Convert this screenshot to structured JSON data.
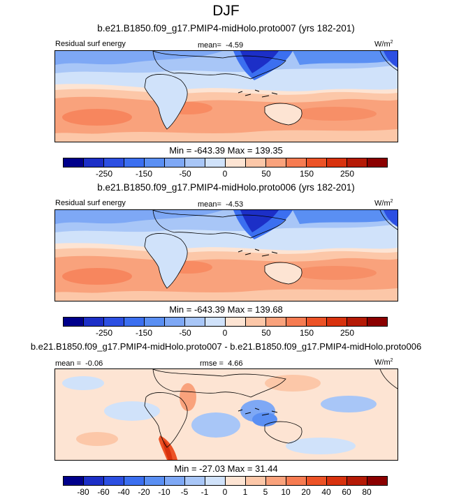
{
  "figure_title": "DJF",
  "colors": {
    "levels_abs": [
      "#00008b",
      "#1c2fc7",
      "#2c4fe2",
      "#3b6ff0",
      "#5a8ff3",
      "#7ea8f5",
      "#a8c6f7",
      "#d0e2fa",
      "#fde4d3",
      "#fcc7a8",
      "#f9a27c",
      "#f67b51",
      "#ec5226",
      "#d8320e",
      "#b51a06",
      "#8b0000"
    ]
  },
  "chart_data": [
    {
      "type": "heatmap",
      "title": "b.e21.B1850.f09_g17.PMIP4-midHolo.proto007 (yrs 182-201)",
      "variable_label": "Residual surf energy",
      "mean_label": "mean=",
      "mean_value": "-4.59",
      "units": "W/m",
      "units_exp": "2",
      "min_max": "Min = -643.39 Max = 139.35",
      "colorbar_ticks": [
        "-250",
        "-150",
        "-50",
        "0",
        "50",
        "150",
        "250"
      ]
    },
    {
      "type": "heatmap",
      "title": "b.e21.B1850.f09_g17.PMIP4-midHolo.proto006 (yrs 182-201)",
      "variable_label": "Residual surf energy",
      "mean_label": "mean=",
      "mean_value": "-4.53",
      "units": "W/m",
      "units_exp": "2",
      "min_max": "Min = -643.39 Max = 139.68",
      "colorbar_ticks": [
        "-250",
        "-150",
        "-50",
        "0",
        "50",
        "150",
        "250"
      ]
    },
    {
      "type": "heatmap",
      "title": "b.e21.B1850.f09_g17.PMIP4-midHolo.proto007 - b.e21.B1850.f09_g17.PMIP4-midHolo.proto006",
      "mean_label": "mean =",
      "mean_value": "-0.06",
      "rmse_label": "rmse =",
      "rmse_value": "4.66",
      "units": "W/m",
      "units_exp": "2",
      "min_max": "Min = -27.03 Max = 31.44",
      "colorbar_ticks": [
        "-80",
        "-60",
        "-40",
        "-20",
        "-10",
        "-5",
        "-1",
        "0",
        "1",
        "5",
        "10",
        "20",
        "40",
        "60",
        "80"
      ]
    }
  ]
}
